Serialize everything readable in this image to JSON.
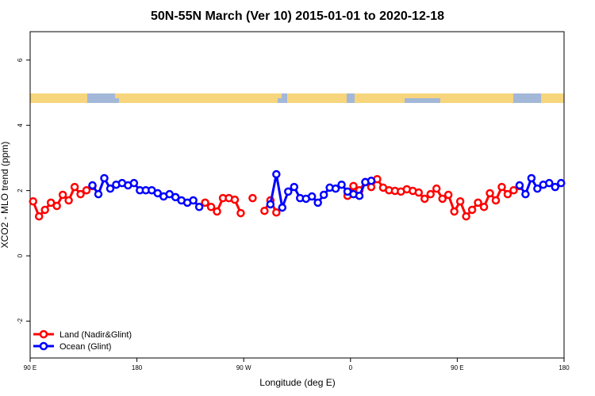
{
  "chart_data": {
    "type": "line",
    "title": "50N-55N March (Ver 10)   2015-01-01 to 2020-12-18",
    "x_label": "Longitude (deg E)",
    "y_label": "XCO2 - MLO trend (ppm)",
    "xlim": [
      90,
      540
    ],
    "ylim": [
      -3.13,
      6.87
    ],
    "xticks": [
      {
        "value": 90,
        "label": "90 E"
      },
      180,
      {
        "value": 270,
        "label": "90 W"
      },
      {
        "value": 360,
        "label": "0"
      },
      {
        "value": 450,
        "label": "90 E"
      },
      {
        "value": 540,
        "label": "180"
      }
    ],
    "yticks": [
      -2,
      0,
      2,
      4,
      6
    ],
    "legend": "bottom-left",
    "x": [
      92.5,
      97.5,
      102.5,
      107.5,
      112.5,
      117.5,
      122.5,
      127.5,
      132.5,
      137.5,
      142.5,
      147.5,
      152.5,
      157.5,
      162.5,
      167.5,
      172.5,
      177.5,
      182.5,
      187.5,
      192.5,
      197.5,
      202.5,
      207.5,
      212.5,
      217.5,
      222.5,
      227.5,
      232.5,
      237.5,
      242.5,
      247.5,
      252.5,
      257.5,
      262.5,
      267.5,
      272.5,
      277.5,
      282.5,
      287.5,
      292.5,
      297.5,
      302.5,
      307.5,
      312.5,
      317.5,
      322.5,
      327.5,
      332.5,
      337.5,
      342.5,
      347.5,
      352.5,
      357.5,
      362.5,
      367.5,
      372.5,
      377.5,
      382.5,
      387.5,
      392.5,
      397.5,
      402.5,
      407.5,
      412.5,
      417.5,
      422.5,
      427.5,
      432.5,
      437.5,
      442.5,
      447.5,
      452.5,
      457.5,
      462.5,
      467.5,
      472.5,
      477.5,
      482.5,
      487.5,
      492.5,
      497.5,
      502.5,
      507.5,
      512.5,
      517.5,
      522.5,
      527.5,
      532.5,
      537.5
    ],
    "series": [
      {
        "name": "Land (Nadir&Glint)",
        "color": "#ff0000",
        "values": [
          1.67,
          1.21,
          1.41,
          1.63,
          1.53,
          1.87,
          1.7,
          2.11,
          1.89,
          2.01,
          2.14,
          null,
          null,
          null,
          null,
          null,
          null,
          null,
          null,
          null,
          null,
          null,
          null,
          null,
          null,
          null,
          null,
          null,
          null,
          1.63,
          1.5,
          1.36,
          1.77,
          1.77,
          1.72,
          1.31,
          null,
          1.77,
          null,
          1.38,
          1.7,
          1.33,
          null,
          null,
          null,
          null,
          null,
          null,
          null,
          null,
          null,
          null,
          null,
          1.84,
          2.14,
          2.01,
          2.26,
          2.11,
          2.35,
          2.09,
          2.01,
          1.99,
          1.97,
          2.04,
          1.99,
          1.94,
          1.75,
          1.89,
          2.06,
          1.75,
          1.87,
          1.36,
          1.67,
          1.21,
          1.41,
          1.63,
          1.5,
          1.92,
          1.7,
          2.11,
          1.89,
          2.01,
          2.14,
          null,
          null,
          null,
          null,
          null,
          null,
          null
        ]
      },
      {
        "name": "Ocean (Glint)",
        "color": "#0000ff",
        "values": [
          null,
          null,
          null,
          null,
          null,
          null,
          null,
          null,
          null,
          null,
          2.16,
          1.89,
          2.38,
          2.06,
          2.18,
          2.23,
          2.16,
          2.23,
          2.01,
          2.01,
          2.01,
          1.92,
          1.82,
          1.89,
          1.8,
          1.7,
          1.63,
          1.7,
          1.5,
          null,
          null,
          null,
          null,
          null,
          null,
          null,
          null,
          null,
          null,
          null,
          1.58,
          2.5,
          1.48,
          1.97,
          2.11,
          1.77,
          1.75,
          1.82,
          1.63,
          1.87,
          2.09,
          2.06,
          2.18,
          1.97,
          1.89,
          1.84,
          2.26,
          2.3,
          null,
          null,
          null,
          null,
          null,
          null,
          null,
          null,
          null,
          null,
          null,
          null,
          null,
          null,
          null,
          null,
          null,
          null,
          null,
          null,
          null,
          null,
          null,
          null,
          2.16,
          1.89,
          2.38,
          2.06,
          2.18,
          2.23,
          2.11,
          2.23
        ]
      }
    ]
  }
}
